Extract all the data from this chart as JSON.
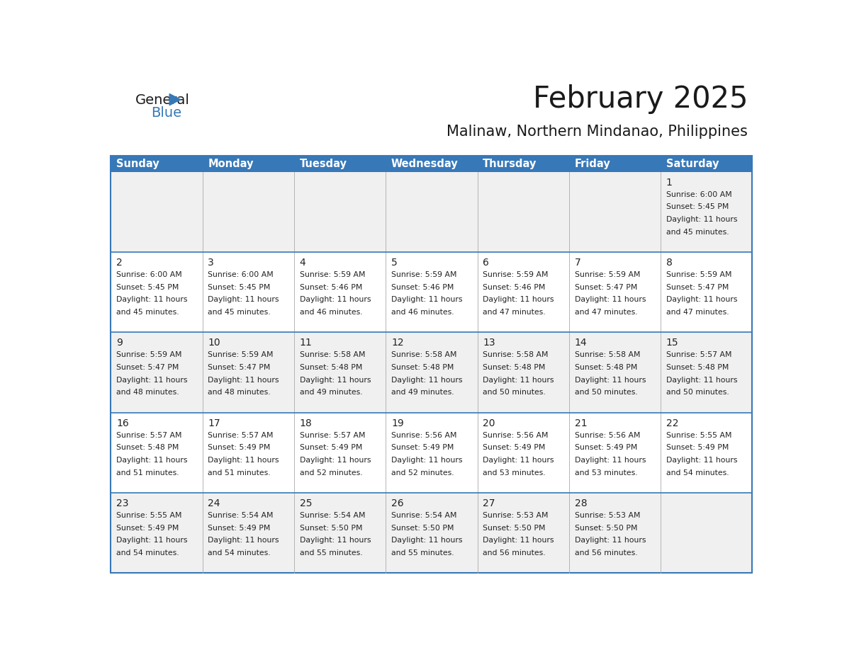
{
  "title": "February 2025",
  "subtitle": "Malinaw, Northern Mindanao, Philippines",
  "days_of_week": [
    "Sunday",
    "Monday",
    "Tuesday",
    "Wednesday",
    "Thursday",
    "Friday",
    "Saturday"
  ],
  "header_bg": "#3778b8",
  "header_text": "#ffffff",
  "cell_bg_odd": "#f0f0f0",
  "cell_bg_even": "#ffffff",
  "line_color": "#3778b8",
  "text_color": "#222222",
  "calendar_data": [
    [
      null,
      null,
      null,
      null,
      null,
      null,
      {
        "day": 1,
        "sunrise": "6:00 AM",
        "sunset": "5:45 PM",
        "daylight": "11 hours",
        "daylight2": "and 45 minutes."
      }
    ],
    [
      {
        "day": 2,
        "sunrise": "6:00 AM",
        "sunset": "5:45 PM",
        "daylight": "11 hours",
        "daylight2": "and 45 minutes."
      },
      {
        "day": 3,
        "sunrise": "6:00 AM",
        "sunset": "5:45 PM",
        "daylight": "11 hours",
        "daylight2": "and 45 minutes."
      },
      {
        "day": 4,
        "sunrise": "5:59 AM",
        "sunset": "5:46 PM",
        "daylight": "11 hours",
        "daylight2": "and 46 minutes."
      },
      {
        "day": 5,
        "sunrise": "5:59 AM",
        "sunset": "5:46 PM",
        "daylight": "11 hours",
        "daylight2": "and 46 minutes."
      },
      {
        "day": 6,
        "sunrise": "5:59 AM",
        "sunset": "5:46 PM",
        "daylight": "11 hours",
        "daylight2": "and 47 minutes."
      },
      {
        "day": 7,
        "sunrise": "5:59 AM",
        "sunset": "5:47 PM",
        "daylight": "11 hours",
        "daylight2": "and 47 minutes."
      },
      {
        "day": 8,
        "sunrise": "5:59 AM",
        "sunset": "5:47 PM",
        "daylight": "11 hours",
        "daylight2": "and 47 minutes."
      }
    ],
    [
      {
        "day": 9,
        "sunrise": "5:59 AM",
        "sunset": "5:47 PM",
        "daylight": "11 hours",
        "daylight2": "and 48 minutes."
      },
      {
        "day": 10,
        "sunrise": "5:59 AM",
        "sunset": "5:47 PM",
        "daylight": "11 hours",
        "daylight2": "and 48 minutes."
      },
      {
        "day": 11,
        "sunrise": "5:58 AM",
        "sunset": "5:48 PM",
        "daylight": "11 hours",
        "daylight2": "and 49 minutes."
      },
      {
        "day": 12,
        "sunrise": "5:58 AM",
        "sunset": "5:48 PM",
        "daylight": "11 hours",
        "daylight2": "and 49 minutes."
      },
      {
        "day": 13,
        "sunrise": "5:58 AM",
        "sunset": "5:48 PM",
        "daylight": "11 hours",
        "daylight2": "and 50 minutes."
      },
      {
        "day": 14,
        "sunrise": "5:58 AM",
        "sunset": "5:48 PM",
        "daylight": "11 hours",
        "daylight2": "and 50 minutes."
      },
      {
        "day": 15,
        "sunrise": "5:57 AM",
        "sunset": "5:48 PM",
        "daylight": "11 hours",
        "daylight2": "and 50 minutes."
      }
    ],
    [
      {
        "day": 16,
        "sunrise": "5:57 AM",
        "sunset": "5:48 PM",
        "daylight": "11 hours",
        "daylight2": "and 51 minutes."
      },
      {
        "day": 17,
        "sunrise": "5:57 AM",
        "sunset": "5:49 PM",
        "daylight": "11 hours",
        "daylight2": "and 51 minutes."
      },
      {
        "day": 18,
        "sunrise": "5:57 AM",
        "sunset": "5:49 PM",
        "daylight": "11 hours",
        "daylight2": "and 52 minutes."
      },
      {
        "day": 19,
        "sunrise": "5:56 AM",
        "sunset": "5:49 PM",
        "daylight": "11 hours",
        "daylight2": "and 52 minutes."
      },
      {
        "day": 20,
        "sunrise": "5:56 AM",
        "sunset": "5:49 PM",
        "daylight": "11 hours",
        "daylight2": "and 53 minutes."
      },
      {
        "day": 21,
        "sunrise": "5:56 AM",
        "sunset": "5:49 PM",
        "daylight": "11 hours",
        "daylight2": "and 53 minutes."
      },
      {
        "day": 22,
        "sunrise": "5:55 AM",
        "sunset": "5:49 PM",
        "daylight": "11 hours",
        "daylight2": "and 54 minutes."
      }
    ],
    [
      {
        "day": 23,
        "sunrise": "5:55 AM",
        "sunset": "5:49 PM",
        "daylight": "11 hours",
        "daylight2": "and 54 minutes."
      },
      {
        "day": 24,
        "sunrise": "5:54 AM",
        "sunset": "5:49 PM",
        "daylight": "11 hours",
        "daylight2": "and 54 minutes."
      },
      {
        "day": 25,
        "sunrise": "5:54 AM",
        "sunset": "5:50 PM",
        "daylight": "11 hours",
        "daylight2": "and 55 minutes."
      },
      {
        "day": 26,
        "sunrise": "5:54 AM",
        "sunset": "5:50 PM",
        "daylight": "11 hours",
        "daylight2": "and 55 minutes."
      },
      {
        "day": 27,
        "sunrise": "5:53 AM",
        "sunset": "5:50 PM",
        "daylight": "11 hours",
        "daylight2": "and 56 minutes."
      },
      {
        "day": 28,
        "sunrise": "5:53 AM",
        "sunset": "5:50 PM",
        "daylight": "11 hours",
        "daylight2": "and 56 minutes."
      },
      null
    ]
  ]
}
